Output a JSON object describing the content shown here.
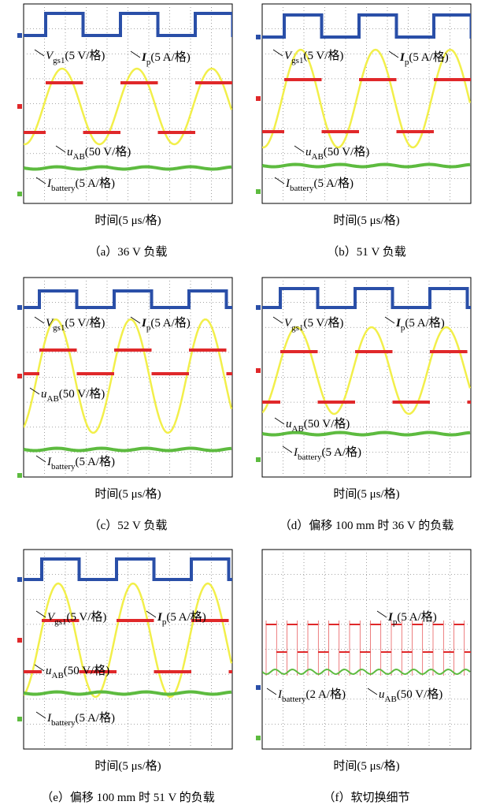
{
  "panels": [
    {
      "caption": "（a）36 V 负载",
      "xlabel": "时间(5 μs/格)",
      "labels": [
        {
          "symbol": "V",
          "subscript": "gs1",
          "unit": "(5 V/格)"
        },
        {
          "symbol": "I",
          "subscript": "p",
          "unit": "(5 A/格)"
        },
        {
          "symbol": "u",
          "subscript": "AB",
          "unit": "(50 V/格)"
        },
        {
          "symbol": "I",
          "subscript": "battery",
          "unit": "(5 A/格)"
        }
      ]
    },
    {
      "caption": "（b）51 V 负载",
      "xlabel": "时间(5 μs/格)",
      "labels": [
        {
          "symbol": "V",
          "subscript": "gs1",
          "unit": "(5 V/格)"
        },
        {
          "symbol": "I",
          "subscript": "p",
          "unit": "(5 A/格)"
        },
        {
          "symbol": "u",
          "subscript": "AB",
          "unit": "(50 V/格)"
        },
        {
          "symbol": "I",
          "subscript": "battery",
          "unit": "(5 A/格)"
        }
      ]
    },
    {
      "caption": "（c）52 V 负载",
      "xlabel": "时间(5 μs/格)",
      "labels": [
        {
          "symbol": "V",
          "subscript": "gs1",
          "unit": "(5 V/格)"
        },
        {
          "symbol": "I",
          "subscript": "p",
          "unit": "(5 A/格)"
        },
        {
          "symbol": "u",
          "subscript": "AB",
          "unit": "(50 V/格)"
        },
        {
          "symbol": "I",
          "subscript": "battery",
          "unit": "(5 A/格)"
        }
      ]
    },
    {
      "caption": "（d）偏移 100 mm 时 36 V 的负载",
      "xlabel": "时间(5 μs/格)",
      "labels": [
        {
          "symbol": "V",
          "subscript": "gs1",
          "unit": "(5 V/格)"
        },
        {
          "symbol": "I",
          "subscript": "p",
          "unit": "(5 A/格)"
        },
        {
          "symbol": "u",
          "subscript": "AB",
          "unit": "(50 V/格)"
        },
        {
          "symbol": "I",
          "subscript": "battery",
          "unit": "(5 A/格)"
        }
      ]
    },
    {
      "caption": "（e）偏移 100 mm 时 51 V 的负载",
      "xlabel": "时间(5 μs/格)",
      "labels": [
        {
          "symbol": "V",
          "subscript": "gs1",
          "unit": "(5 V/格)"
        },
        {
          "symbol": "I",
          "subscript": "p",
          "unit": "(5 A/格)"
        },
        {
          "symbol": "u",
          "subscript": "AB",
          "unit": "(50 V/格)"
        },
        {
          "symbol": "I",
          "subscript": "battery",
          "unit": "(5 A/格)"
        }
      ]
    },
    {
      "caption": "（f）软切换细节",
      "xlabel": "时间(5 μs/格)",
      "labels": [
        {
          "symbol": "I",
          "subscript": "p",
          "unit": "(5 A/格)"
        },
        {
          "symbol": "I",
          "subscript": "battery",
          "unit": "(2 A/格)"
        },
        {
          "symbol": "u",
          "subscript": "AB",
          "unit": "(50 V/格)"
        }
      ]
    }
  ]
}
